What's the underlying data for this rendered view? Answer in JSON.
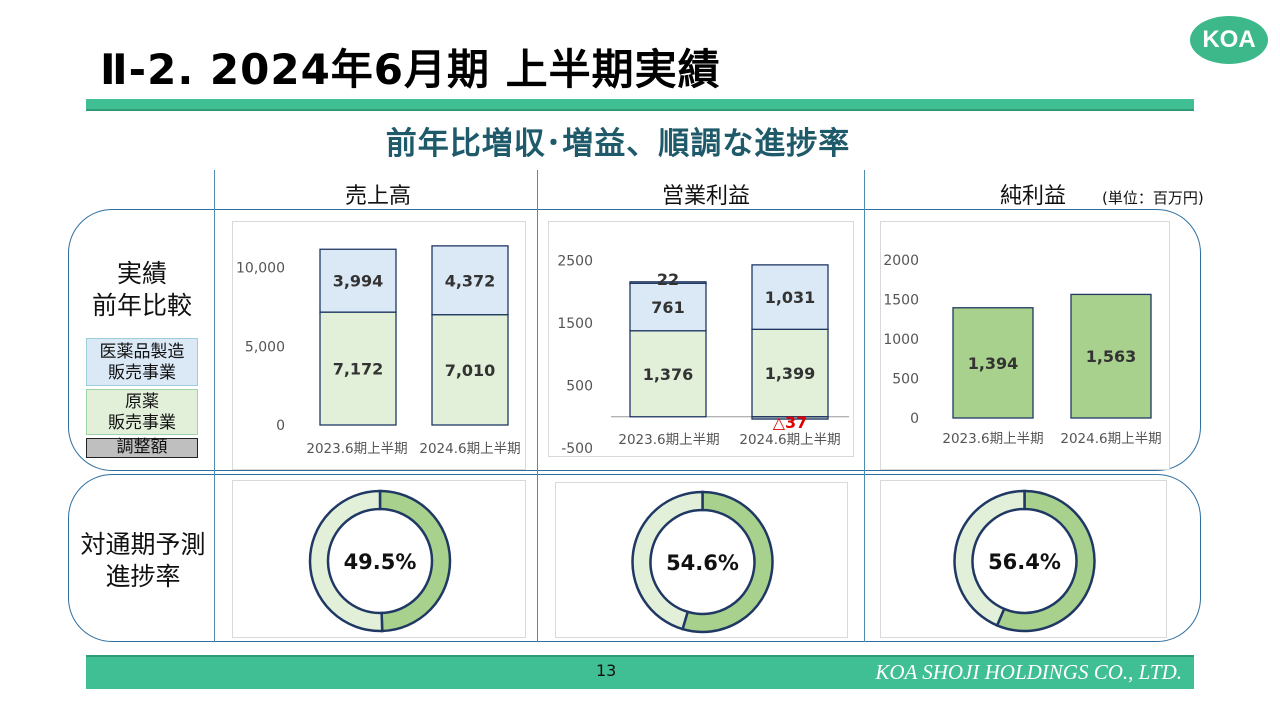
{
  "header": {
    "title": "Ⅱ-2.  2024年6月期 上半期実績",
    "logo_text": "KOA",
    "subtitle": "前年比増収･増益、順調な進捗率"
  },
  "columns": {
    "sales": "売上高",
    "operating_income": "営業利益",
    "net_income": "純利益",
    "unit": "(単位：百万円)"
  },
  "rows": {
    "results_label_1": "実績",
    "results_label_2": "前年比較",
    "progress_label_1": "対通期予測",
    "progress_label_2": "進捗率"
  },
  "legend": {
    "pharma_1": "医薬品製造",
    "pharma_2": "販売事業",
    "raw_1": "原薬",
    "raw_2": "販売事業",
    "adjust": "調整額"
  },
  "colors": {
    "pharma": "#dbe8f5",
    "raw": "#e2f0d9",
    "adjust": "#bfbfbf",
    "net": "#a9d18e",
    "bar_border": "#1f3864",
    "negative_label": "#e00000",
    "band_border": "#2e6fa0",
    "title_bar": "#3fbf93",
    "subtitle": "#1f5a6b"
  },
  "chart_data": [
    {
      "type": "bar",
      "stacked": true,
      "title": "売上高",
      "categories": [
        "2023.6期上半期",
        "2024.6期上半期"
      ],
      "series": [
        {
          "name": "原薬販売事業",
          "values": [
            7172,
            7010
          ],
          "labels": [
            "7,172",
            "7,010"
          ]
        },
        {
          "name": "医薬品製造販売事業",
          "values": [
            3994,
            4372
          ],
          "labels": [
            "3,994",
            "4,372"
          ]
        }
      ],
      "yticks": [
        "10,000",
        "5,000",
        "0"
      ],
      "ylim": [
        0,
        11500
      ]
    },
    {
      "type": "bar",
      "stacked": true,
      "title": "営業利益",
      "categories": [
        "2023.6期上半期",
        "2024.6期上半期"
      ],
      "series": [
        {
          "name": "原薬販売事業",
          "values": [
            1376,
            1399
          ],
          "labels": [
            "1,376",
            "1,399"
          ]
        },
        {
          "name": "医薬品製造販売事業",
          "values": [
            761,
            1031
          ],
          "labels": [
            "761",
            "1,031"
          ]
        },
        {
          "name": "調整額",
          "values": [
            22,
            -37
          ],
          "labels": [
            "22",
            "△37"
          ]
        }
      ],
      "yticks": [
        "2500",
        "1500",
        "500",
        "-500"
      ],
      "ylim": [
        -500,
        2700
      ]
    },
    {
      "type": "bar",
      "title": "純利益",
      "categories": [
        "2023.6期上半期",
        "2024.6期上半期"
      ],
      "series": [
        {
          "name": "純利益",
          "values": [
            1394,
            1563
          ],
          "labels": [
            "1,394",
            "1,563"
          ]
        }
      ],
      "yticks": [
        "2000",
        "1500",
        "1000",
        "500",
        "0"
      ],
      "ylim": [
        0,
        2150
      ]
    },
    {
      "type": "pie",
      "subtype": "donut",
      "title": "売上高 進捗率",
      "values": [
        49.5,
        50.5
      ],
      "label": "49.5%"
    },
    {
      "type": "pie",
      "subtype": "donut",
      "title": "営業利益 進捗率",
      "values": [
        54.6,
        45.4
      ],
      "label": "54.6%"
    },
    {
      "type": "pie",
      "subtype": "donut",
      "title": "純利益 進捗率",
      "values": [
        56.4,
        43.6
      ],
      "label": "56.4%"
    }
  ],
  "footer": {
    "page": "13",
    "company": "KOA SHOJI HOLDINGS CO., LTD."
  }
}
